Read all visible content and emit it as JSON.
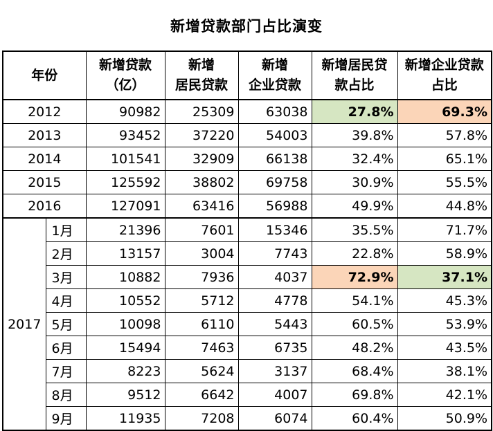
{
  "title": "新增贷款部门占比演变",
  "headers": {
    "year": "年份",
    "total_line1": "新增贷款",
    "total_line2": "（亿）",
    "resident_line1": "新增",
    "resident_line2": "居民贷款",
    "enterprise_line1": "新增",
    "enterprise_line2": "企业贷款",
    "resident_ratio_line1": "新增居民贷",
    "resident_ratio_line2": "款占比",
    "enterprise_ratio_line1": "新增企业贷款",
    "enterprise_ratio_line2": "占比"
  },
  "annual_rows": [
    {
      "year": "2012",
      "total": "90982",
      "resident": "25309",
      "enterprise": "63038",
      "resident_ratio": "27.8%",
      "enterprise_ratio": "69.3%"
    },
    {
      "year": "2013",
      "total": "93452",
      "resident": "37220",
      "enterprise": "54003",
      "resident_ratio": "39.8%",
      "enterprise_ratio": "57.8%"
    },
    {
      "year": "2014",
      "total": "101541",
      "resident": "32909",
      "enterprise": "66138",
      "resident_ratio": "32.4%",
      "enterprise_ratio": "65.1%"
    },
    {
      "year": "2015",
      "total": "125592",
      "resident": "38802",
      "enterprise": "69758",
      "resident_ratio": "30.9%",
      "enterprise_ratio": "55.5%"
    },
    {
      "year": "2016",
      "total": "127091",
      "resident": "63416",
      "enterprise": "56988",
      "resident_ratio": "49.9%",
      "enterprise_ratio": "44.8%"
    }
  ],
  "year_2017": "2017",
  "monthly_rows": [
    {
      "month": "1月",
      "total": "21396",
      "resident": "7601",
      "enterprise": "15346",
      "resident_ratio": "35.5%",
      "enterprise_ratio": "71.7%"
    },
    {
      "month": "2月",
      "total": "13157",
      "resident": "3004",
      "enterprise": "7743",
      "resident_ratio": "22.8%",
      "enterprise_ratio": "58.9%"
    },
    {
      "month": "3月",
      "total": "10882",
      "resident": "7936",
      "enterprise": "4037",
      "resident_ratio": "72.9%",
      "enterprise_ratio": "37.1%"
    },
    {
      "month": "4月",
      "total": "10552",
      "resident": "5712",
      "enterprise": "4778",
      "resident_ratio": "54.1%",
      "enterprise_ratio": "45.3%"
    },
    {
      "month": "5月",
      "total": "10098",
      "resident": "6110",
      "enterprise": "5443",
      "resident_ratio": "60.5%",
      "enterprise_ratio": "53.9%"
    },
    {
      "month": "6月",
      "total": "15494",
      "resident": "7463",
      "enterprise": "6735",
      "resident_ratio": "48.2%",
      "enterprise_ratio": "43.5%"
    },
    {
      "month": "7月",
      "total": "8223",
      "resident": "5624",
      "enterprise": "3137",
      "resident_ratio": "68.4%",
      "enterprise_ratio": "38.1%"
    },
    {
      "month": "8月",
      "total": "9512",
      "resident": "6642",
      "enterprise": "4007",
      "resident_ratio": "69.8%",
      "enterprise_ratio": "42.1%"
    },
    {
      "month": "9月",
      "total": "11935",
      "resident": "7208",
      "enterprise": "6074",
      "resident_ratio": "60.4%",
      "enterprise_ratio": "50.9%"
    }
  ],
  "highlight_colors": {
    "green": "#d6e6c2",
    "orange": "#fbd5b8"
  }
}
